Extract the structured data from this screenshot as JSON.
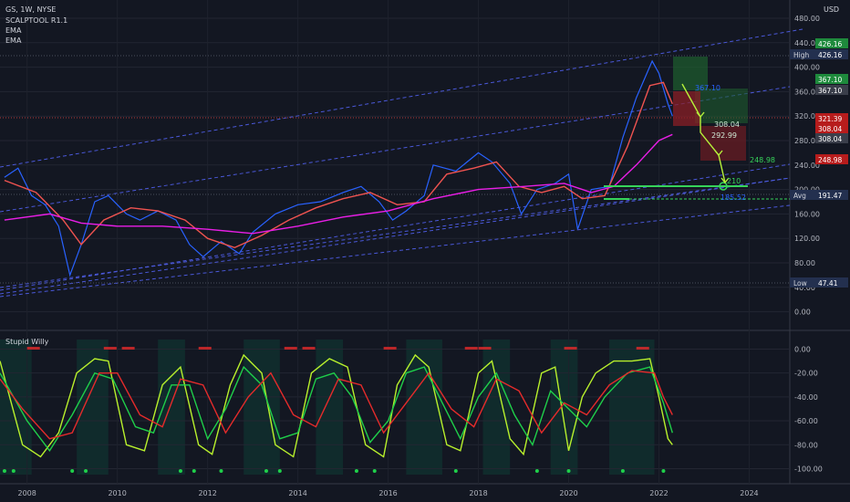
{
  "header": {
    "symbol": "GS, 1W, NYSE",
    "indicators": [
      "SCALPTOOL R1.1",
      "EMA",
      "EMA"
    ],
    "currency": "USD",
    "sub_indicator": "Stupid Willy"
  },
  "colors": {
    "background": "#131722",
    "price_line": "#2962ff",
    "ema_fast": "#ef5350",
    "ema_slow": "#e91ee6",
    "osc_fast": "#b8f02c",
    "osc_slow": "#1fcf4a",
    "osc_red": "#e52b2b",
    "projection": "#b6f23a",
    "target_line": "#36d35a",
    "trend_lines": "#4a58d8"
  },
  "chart_data": [
    {
      "type": "line",
      "title": "",
      "x_ticks": [
        "2008",
        "2010",
        "2012",
        "2014",
        "2016",
        "2018",
        "2020",
        "2022",
        "2024"
      ],
      "y_ticks": [
        "480.00",
        "440.00",
        "400.00",
        "360.00",
        "320.00",
        "280.00",
        "240.00",
        "200.00",
        "160.00",
        "120.00",
        "80.00",
        "40.00",
        "0.00"
      ],
      "ylim": [
        -20,
        480
      ],
      "xlim": [
        2007.4,
        2024.9
      ],
      "series": [
        {
          "key": "price",
          "x": [
            2007.5,
            2007.8,
            2008.1,
            2008.4,
            2008.7,
            2008.95,
            2009.2,
            2009.5,
            2009.8,
            2010.2,
            2010.5,
            2010.9,
            2011.3,
            2011.6,
            2011.9,
            2012.3,
            2012.7,
            2013.0,
            2013.5,
            2014.0,
            2014.5,
            2015.0,
            2015.4,
            2015.8,
            2016.1,
            2016.4,
            2016.8,
            2017.0,
            2017.5,
            2018.0,
            2018.3,
            2018.7,
            2018.95,
            2019.3,
            2019.7,
            2020.0,
            2020.2,
            2020.5,
            2020.9,
            2021.2,
            2021.5,
            2021.85,
            2022.0,
            2022.2,
            2022.3
          ],
          "y": [
            220,
            235,
            190,
            175,
            140,
            60,
            110,
            180,
            190,
            160,
            150,
            165,
            150,
            110,
            90,
            115,
            95,
            130,
            160,
            175,
            180,
            195,
            205,
            180,
            150,
            165,
            190,
            240,
            230,
            260,
            245,
            210,
            160,
            200,
            210,
            225,
            135,
            200,
            205,
            285,
            350,
            410,
            390,
            340,
            320
          ]
        },
        {
          "key": "ema_fast",
          "x": [
            2007.5,
            2008.2,
            2008.8,
            2009.2,
            2009.7,
            2010.3,
            2010.9,
            2011.5,
            2012.0,
            2012.6,
            2013.2,
            2013.8,
            2014.4,
            2015.0,
            2015.6,
            2016.2,
            2016.8,
            2017.3,
            2017.9,
            2018.4,
            2018.9,
            2019.4,
            2019.9,
            2020.3,
            2020.8,
            2021.3,
            2021.8,
            2022.1,
            2022.3
          ],
          "y": [
            215,
            195,
            150,
            110,
            150,
            170,
            165,
            150,
            120,
            105,
            125,
            150,
            170,
            185,
            195,
            175,
            180,
            225,
            235,
            245,
            205,
            195,
            205,
            185,
            190,
            270,
            370,
            375,
            340
          ]
        },
        {
          "key": "ema_slow",
          "x": [
            2007.5,
            2008.5,
            2009.2,
            2010.0,
            2011.0,
            2012.0,
            2013.0,
            2014.0,
            2015.0,
            2016.0,
            2017.0,
            2018.0,
            2019.0,
            2019.9,
            2020.5,
            2021.0,
            2021.5,
            2022.0,
            2022.3
          ],
          "y": [
            150,
            160,
            145,
            140,
            140,
            135,
            128,
            140,
            155,
            165,
            185,
            200,
            205,
            210,
            195,
            205,
            240,
            280,
            290
          ]
        }
      ],
      "price_labels": [
        {
          "value": "426.16",
          "color": "#1e8a3c"
        },
        {
          "value": "426.16",
          "color": "#23304f",
          "tag": "High"
        },
        {
          "value": "367.10",
          "color": "#1e8a3c"
        },
        {
          "value": "367.10",
          "color": "#3a3e4a"
        },
        {
          "value": "321.39",
          "color": "#b71c1c"
        },
        {
          "value": "308.04",
          "color": "#b71c1c"
        },
        {
          "value": "308.04",
          "color": "#3a3e4a"
        },
        {
          "value": "248.98",
          "color": "#b71c1c"
        },
        {
          "value": "191.47",
          "color": "#23304f",
          "tag": "Avg"
        },
        {
          "value": "47.41",
          "color": "#23304f",
          "tag": "Low"
        }
      ],
      "annotations": [
        "367.10",
        "308.04",
        "292.99",
        "248.98",
        "210",
        "185.52"
      ]
    },
    {
      "type": "line",
      "title": "",
      "y_ticks": [
        "0.00",
        "-20.00",
        "-40.00",
        "-60.00",
        "-80.00",
        "-100.00"
      ],
      "ylim": [
        -105,
        8
      ],
      "series": [
        {
          "key": "fast",
          "x": [
            2007.4,
            2007.9,
            2008.3,
            2008.7,
            2009.1,
            2009.5,
            2009.8,
            2010.2,
            2010.6,
            2011.0,
            2011.4,
            2011.8,
            2012.1,
            2012.5,
            2012.8,
            2013.2,
            2013.5,
            2013.9,
            2014.3,
            2014.7,
            2015.1,
            2015.5,
            2015.9,
            2016.2,
            2016.6,
            2016.9,
            2017.3,
            2017.6,
            2018.0,
            2018.3,
            2018.7,
            2019.0,
            2019.4,
            2019.7,
            2020.0,
            2020.3,
            2020.6,
            2021.0,
            2021.4,
            2021.8,
            2022.0,
            2022.2,
            2022.3
          ],
          "y": [
            -10,
            -80,
            -90,
            -70,
            -20,
            -8,
            -10,
            -80,
            -85,
            -30,
            -15,
            -80,
            -88,
            -30,
            -5,
            -20,
            -80,
            -90,
            -20,
            -8,
            -15,
            -80,
            -90,
            -30,
            -5,
            -15,
            -80,
            -85,
            -20,
            -10,
            -75,
            -88,
            -20,
            -15,
            -85,
            -40,
            -20,
            -10,
            -10,
            -8,
            -40,
            -75,
            -80
          ]
        },
        {
          "key": "slow",
          "x": [
            2007.4,
            2008.0,
            2008.5,
            2009.0,
            2009.5,
            2009.9,
            2010.4,
            2010.8,
            2011.2,
            2011.6,
            2012.0,
            2012.4,
            2012.8,
            2013.2,
            2013.6,
            2014.0,
            2014.4,
            2014.8,
            2015.2,
            2015.6,
            2016.0,
            2016.4,
            2016.8,
            2017.2,
            2017.6,
            2018.0,
            2018.4,
            2018.8,
            2019.2,
            2019.6,
            2020.0,
            2020.4,
            2020.8,
            2021.3,
            2021.8,
            2022.1,
            2022.3
          ],
          "y": [
            -20,
            -60,
            -85,
            -55,
            -20,
            -25,
            -65,
            -70,
            -30,
            -30,
            -75,
            -50,
            -15,
            -30,
            -75,
            -70,
            -25,
            -20,
            -40,
            -78,
            -60,
            -20,
            -15,
            -45,
            -75,
            -40,
            -20,
            -55,
            -80,
            -35,
            -50,
            -65,
            -40,
            -20,
            -15,
            -45,
            -70
          ]
        },
        {
          "key": "red",
          "x": [
            2007.4,
            2007.9,
            2008.5,
            2009.0,
            2009.6,
            2010.0,
            2010.5,
            2011.0,
            2011.4,
            2011.9,
            2012.4,
            2012.9,
            2013.4,
            2013.9,
            2014.4,
            2014.9,
            2015.4,
            2015.9,
            2016.4,
            2016.9,
            2017.4,
            2017.9,
            2018.4,
            2018.9,
            2019.4,
            2019.9,
            2020.4,
            2020.9,
            2021.4,
            2021.9,
            2022.1,
            2022.3
          ],
          "y": [
            -25,
            -50,
            -75,
            -70,
            -20,
            -20,
            -55,
            -65,
            -25,
            -30,
            -70,
            -40,
            -20,
            -55,
            -65,
            -25,
            -30,
            -70,
            -45,
            -20,
            -50,
            -65,
            -25,
            -35,
            -70,
            -45,
            -55,
            -30,
            -18,
            -20,
            -40,
            -55
          ]
        }
      ]
    }
  ]
}
